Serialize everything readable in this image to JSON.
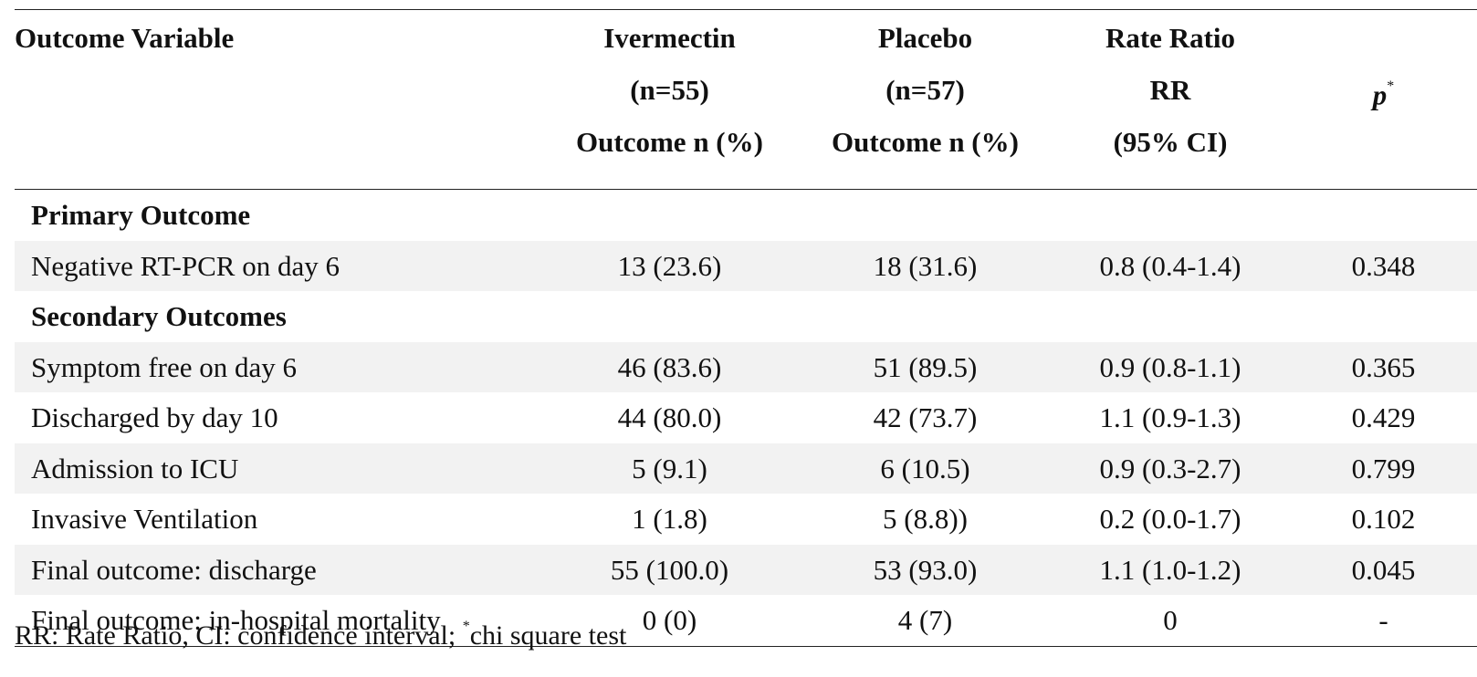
{
  "table": {
    "headers": {
      "outcome": "Outcome Variable",
      "ivermectin": [
        "Ivermectin",
        "(n=55)",
        "Outcome n (%)"
      ],
      "placebo": [
        "Placebo",
        "(n=57)",
        "Outcome n (%)"
      ],
      "rate_ratio": [
        "Rate Ratio",
        "RR",
        "(95% CI)"
      ],
      "p": "p",
      "p_marker": "*"
    },
    "rows": [
      {
        "label": "Primary Outcome"
      },
      {
        "label": "Negative RT-PCR on day 6",
        "ivermectin": "13 (23.6)",
        "placebo": "18 (31.6)",
        "rr": "0.8 (0.4-1.4)",
        "p": "0.348"
      },
      {
        "label": "Secondary Outcomes"
      },
      {
        "label": "Symptom free on day 6",
        "ivermectin": "46 (83.6)",
        "placebo": "51 (89.5)",
        "rr": "0.9 (0.8-1.1)",
        "p": "0.365"
      },
      {
        "label": "Discharged by day 10",
        "ivermectin": "44 (80.0)",
        "placebo": "42 (73.7)",
        "rr": "1.1 (0.9-1.3)",
        "p": "0.429"
      },
      {
        "label": "Admission to ICU",
        "ivermectin": "5 (9.1)",
        "placebo": "6 (10.5)",
        "rr": "0.9 (0.3-2.7)",
        "p": "0.799"
      },
      {
        "label": "Invasive Ventilation",
        "ivermectin": "1 (1.8)",
        "placebo": "5 (8.8))",
        "rr": "0.2 (0.0-1.7)",
        "p": "0.102"
      },
      {
        "label": "Final outcome: discharge",
        "ivermectin": "55 (100.0)",
        "placebo": "53 (93.0)",
        "rr": "1.1 (1.0-1.2)",
        "p": "0.045"
      },
      {
        "label": "Final outcome: in-hospital mortality",
        "ivermectin": "0 (0)",
        "placebo": "4 (7)",
        "rr": "0",
        "p": "-"
      }
    ]
  },
  "footnote": {
    "before": "RR: Rate Ratio, CI: confidence interval; ",
    "marker": "*",
    "after": "chi square test"
  }
}
